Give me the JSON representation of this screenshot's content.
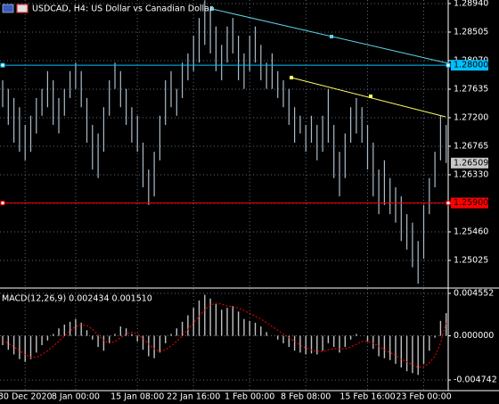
{
  "chart_data": [
    {
      "type": "ohlc",
      "title": "USDCAD, H4:  US Dollar vs Canadian Dollar",
      "color": "#a9bccb",
      "categories": [
        null,
        null,
        null,
        null,
        "30 Dec 2020",
        null,
        null,
        null,
        null,
        null,
        null,
        null,
        null,
        "8 Jan 00:00",
        null,
        null,
        null,
        null,
        null,
        null,
        null,
        null,
        null,
        null,
        "15 Jan 08:00",
        null,
        null,
        null,
        null,
        null,
        null,
        null,
        null,
        null,
        "22 Jan 16:00",
        null,
        null,
        null,
        null,
        null,
        null,
        null,
        null,
        null,
        "1 Feb 00:00",
        null,
        null,
        null,
        null,
        null,
        null,
        null,
        null,
        null,
        "8 Feb 08:00",
        null,
        null,
        null,
        null,
        null,
        null,
        null,
        null,
        null,
        null,
        "15 Feb 16:00",
        null,
        null,
        null,
        null,
        null,
        null,
        null,
        null,
        null,
        "23 Feb 00:00",
        null,
        null,
        null,
        null
      ],
      "high": [
        1.2777,
        1.2764,
        1.275,
        1.2736,
        1.2709,
        1.2723,
        1.275,
        1.2764,
        1.2791,
        1.2777,
        1.275,
        1.2764,
        1.2791,
        1.2804,
        1.2791,
        1.275,
        1.2709,
        1.2696,
        1.2736,
        1.2777,
        1.2804,
        1.2791,
        1.2764,
        1.2736,
        1.2723,
        1.2682,
        1.2641,
        1.2668,
        1.2723,
        1.2777,
        1.2791,
        1.2764,
        1.2804,
        1.2818,
        1.2845,
        1.2872,
        1.2899,
        1.2886,
        1.2859,
        1.2831,
        1.2859,
        1.2872,
        1.2845,
        1.2818,
        1.2845,
        1.2859,
        1.2831,
        1.2804,
        1.2818,
        1.2791,
        1.2777,
        1.2764,
        1.2736,
        1.2723,
        1.2709,
        1.2723,
        1.2709,
        1.2723,
        1.2764,
        1.2709,
        1.2668,
        1.2696,
        1.2736,
        1.275,
        1.2736,
        1.2709,
        1.2682,
        1.2641,
        1.2655,
        1.2628,
        1.2614,
        1.26,
        1.2573,
        1.256,
        1.2532,
        1.2587,
        1.2628,
        1.2668,
        1.2723,
        1.2709
      ],
      "low": [
        1.2736,
        1.2709,
        1.2682,
        1.2668,
        1.2655,
        1.2668,
        1.2696,
        1.2723,
        1.2736,
        1.2709,
        1.2696,
        1.2723,
        1.275,
        1.2764,
        1.2736,
        1.2682,
        1.2641,
        1.2628,
        1.2668,
        1.2723,
        1.2764,
        1.2736,
        1.2709,
        1.2682,
        1.2668,
        1.2614,
        1.2587,
        1.26,
        1.2655,
        1.2709,
        1.2736,
        1.2723,
        1.275,
        1.2777,
        1.2791,
        1.2804,
        1.2831,
        1.2818,
        1.2791,
        1.2777,
        1.2804,
        1.2818,
        1.2777,
        1.2764,
        1.2791,
        1.2804,
        1.2777,
        1.2764,
        1.2764,
        1.275,
        1.2736,
        1.2709,
        1.2682,
        1.2696,
        1.2668,
        1.2682,
        1.2655,
        1.2668,
        1.2682,
        1.2628,
        1.26,
        1.2628,
        1.2682,
        1.2696,
        1.2682,
        1.2641,
        1.26,
        1.2573,
        1.2587,
        1.2573,
        1.256,
        1.2532,
        1.2519,
        1.2492,
        1.2467,
        1.2505,
        1.2573,
        1.2614,
        1.2655,
        1.2651
      ],
      "ylim": [
        1.24617,
        1.28994
      ],
      "yticks": [
        {
          "value": 1.2894,
          "label": "1.28940"
        },
        {
          "value": 1.28505,
          "label": "1.28505"
        },
        {
          "value": 1.2807,
          "label": "1.28070"
        },
        {
          "value": 1.27635,
          "label": "1.27635"
        },
        {
          "value": 1.272,
          "label": "1.27200"
        },
        {
          "value": 1.26765,
          "label": "1.26765"
        },
        {
          "value": 1.2633,
          "label": "1.26330"
        },
        {
          "value": 1.25895,
          "label": "1.25895"
        },
        {
          "value": 1.2546,
          "label": "1.25460"
        },
        {
          "value": 1.25025,
          "label": "1.25025"
        }
      ],
      "price_levels": [
        {
          "value": 1.28,
          "label": "1.28000",
          "color": "#00bfff"
        },
        {
          "value": 1.259,
          "label": "1.25900",
          "color": "#ff0000"
        }
      ],
      "last_price": {
        "value": 1.26509,
        "label": "1.26509"
      },
      "grid": true
    },
    {
      "type": "macd",
      "title": "MACD(12,26,9) 0.002434 0.001510",
      "color": "#c0c0c0",
      "signal_color": "#ff0000",
      "histogram": [
        -0.001,
        -0.0015,
        -0.002,
        -0.0025,
        -0.0028,
        -0.0025,
        -0.0018,
        -0.001,
        -0.0005,
        0.0002,
        0.0008,
        0.0012,
        0.0015,
        0.0018,
        0.0014,
        0.0006,
        -0.0004,
        -0.0012,
        -0.0016,
        -0.0008,
        0.0002,
        0.001,
        0.0008,
        0.0002,
        -0.0006,
        -0.0015,
        -0.0022,
        -0.0024,
        -0.0018,
        -0.0008,
        0.0002,
        0.0008,
        0.0015,
        0.0022,
        0.003,
        0.0038,
        0.0044,
        0.004,
        0.0034,
        0.0028,
        0.003,
        0.0032,
        0.0026,
        0.0018,
        0.0016,
        0.0014,
        0.001,
        0.0004,
        0.0,
        -0.0004,
        -0.0008,
        -0.0012,
        -0.0016,
        -0.0018,
        -0.002,
        -0.0019,
        -0.002,
        -0.0016,
        -0.0008,
        -0.0012,
        -0.0018,
        -0.0012,
        -0.0004,
        0.0002,
        0.0,
        -0.0006,
        -0.0014,
        -0.0022,
        -0.0024,
        -0.0026,
        -0.003,
        -0.0034,
        -0.0038,
        -0.004,
        -0.0042,
        -0.003,
        -0.0016,
        -0.0002,
        0.0016,
        0.002434
      ],
      "signal": [
        -0.0005,
        -0.0008,
        -0.0012,
        -0.0016,
        -0.002,
        -0.0023,
        -0.0023,
        -0.002,
        -0.0016,
        -0.0011,
        -0.0006,
        0.0,
        0.0005,
        0.001,
        0.0012,
        0.0011,
        0.0007,
        0.0001,
        -0.0005,
        -0.0008,
        -0.0006,
        -0.0002,
        0.0002,
        0.0004,
        0.0002,
        -0.0003,
        -0.0009,
        -0.0014,
        -0.0017,
        -0.0015,
        -0.0011,
        -0.0006,
        0.0,
        0.0007,
        0.0014,
        0.0021,
        0.0028,
        0.0033,
        0.0035,
        0.0034,
        0.0032,
        0.0031,
        0.003,
        0.0027,
        0.0024,
        0.0021,
        0.0018,
        0.0014,
        0.001,
        0.0006,
        0.0002,
        -0.0002,
        -0.0006,
        -0.001,
        -0.0013,
        -0.0015,
        -0.0017,
        -0.0017,
        -0.0015,
        -0.0014,
        -0.0014,
        -0.0014,
        -0.0012,
        -0.0009,
        -0.0006,
        -0.0006,
        -0.0008,
        -0.0011,
        -0.0015,
        -0.0018,
        -0.0021,
        -0.0025,
        -0.0028,
        -0.0031,
        -0.0034,
        -0.0033,
        -0.0029,
        -0.0022,
        -0.0008,
        0.00151
      ],
      "ylim": [
        -0.005882,
        0.004932
      ],
      "yticks": [
        {
          "value": 0.004552,
          "label": "0.004552"
        },
        {
          "value": 0,
          "label": "0.000000"
        },
        {
          "value": -0.004742,
          "label": "-0.004742"
        }
      ],
      "grid": true
    }
  ]
}
